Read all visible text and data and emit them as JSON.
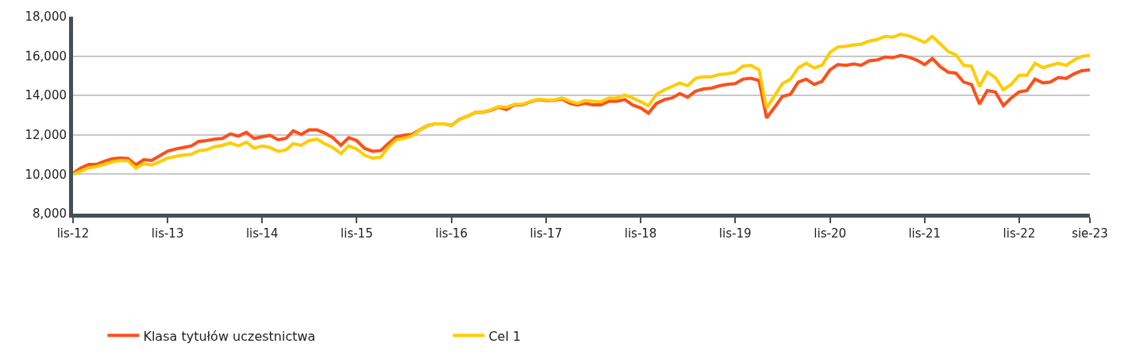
{
  "chart_data": {
    "type": "line",
    "x": [
      "2012-11",
      "2012-12",
      "2013-01",
      "2013-02",
      "2013-03",
      "2013-04",
      "2013-05",
      "2013-06",
      "2013-07",
      "2013-08",
      "2013-09",
      "2013-10",
      "2013-11",
      "2013-12",
      "2014-01",
      "2014-02",
      "2014-03",
      "2014-04",
      "2014-05",
      "2014-06",
      "2014-07",
      "2014-08",
      "2014-09",
      "2014-10",
      "2014-11",
      "2014-12",
      "2015-01",
      "2015-02",
      "2015-03",
      "2015-04",
      "2015-05",
      "2015-06",
      "2015-07",
      "2015-08",
      "2015-09",
      "2015-10",
      "2015-11",
      "2015-12",
      "2016-01",
      "2016-02",
      "2016-03",
      "2016-04",
      "2016-05",
      "2016-06",
      "2016-07",
      "2016-08",
      "2016-09",
      "2016-10",
      "2016-11",
      "2016-12",
      "2017-01",
      "2017-02",
      "2017-03",
      "2017-04",
      "2017-05",
      "2017-06",
      "2017-07",
      "2017-08",
      "2017-09",
      "2017-10",
      "2017-11",
      "2017-12",
      "2018-01",
      "2018-02",
      "2018-03",
      "2018-04",
      "2018-05",
      "2018-06",
      "2018-07",
      "2018-08",
      "2018-09",
      "2018-10",
      "2018-11",
      "2018-12",
      "2019-01",
      "2019-02",
      "2019-03",
      "2019-04",
      "2019-05",
      "2019-06",
      "2019-07",
      "2019-08",
      "2019-09",
      "2019-10",
      "2019-11",
      "2019-12",
      "2020-01",
      "2020-02",
      "2020-03",
      "2020-04",
      "2020-05",
      "2020-06",
      "2020-07",
      "2020-08",
      "2020-09",
      "2020-10",
      "2020-11",
      "2020-12",
      "2021-01",
      "2021-02",
      "2021-03",
      "2021-04",
      "2021-05",
      "2021-06",
      "2021-07",
      "2021-08",
      "2021-09",
      "2021-10",
      "2021-11",
      "2021-12",
      "2022-01",
      "2022-02",
      "2022-03",
      "2022-04",
      "2022-05",
      "2022-06",
      "2022-07",
      "2022-08",
      "2022-09",
      "2022-10",
      "2022-11",
      "2022-12",
      "2023-01",
      "2023-02",
      "2023-03",
      "2023-04",
      "2023-05",
      "2023-06",
      "2023-07",
      "2023-08"
    ],
    "series": [
      {
        "name": "Klasa tytułów uczestnictwa",
        "color": "#ff4e1a",
        "values": [
          10050,
          10320,
          10500,
          10510,
          10660,
          10780,
          10820,
          10800,
          10470,
          10740,
          10700,
          10930,
          11170,
          11280,
          11360,
          11440,
          11670,
          11710,
          11780,
          11820,
          12050,
          11940,
          12130,
          11820,
          11900,
          11980,
          11750,
          11820,
          12210,
          12020,
          12250,
          12250,
          12090,
          11860,
          11470,
          11860,
          11710,
          11320,
          11170,
          11200,
          11550,
          11900,
          11980,
          12020,
          12250,
          12480,
          12560,
          12560,
          12480,
          12790,
          12940,
          13140,
          13140,
          13250,
          13400,
          13290,
          13520,
          13520,
          13680,
          13790,
          13750,
          13750,
          13830,
          13600,
          13520,
          13600,
          13520,
          13520,
          13710,
          13710,
          13790,
          13520,
          13370,
          13100,
          13600,
          13790,
          13870,
          14100,
          13910,
          14220,
          14330,
          14370,
          14490,
          14560,
          14600,
          14830,
          14870,
          14760,
          12860,
          13400,
          13950,
          14060,
          14680,
          14830,
          14560,
          14720,
          15300,
          15570,
          15530,
          15600,
          15530,
          15760,
          15800,
          15950,
          15920,
          16030,
          15950,
          15800,
          15570,
          15880,
          15450,
          15180,
          15140,
          14680,
          14560,
          13560,
          14250,
          14180,
          13480,
          13870,
          14180,
          14250,
          14830,
          14640,
          14680,
          14910,
          14870,
          15100,
          15260,
          15300
        ]
      },
      {
        "name": "Cel 1",
        "color": "#ffcc00",
        "values": [
          10000,
          10160,
          10320,
          10400,
          10500,
          10630,
          10700,
          10680,
          10320,
          10540,
          10470,
          10630,
          10820,
          10900,
          10970,
          11010,
          11200,
          11240,
          11400,
          11470,
          11590,
          11440,
          11630,
          11320,
          11440,
          11360,
          11170,
          11240,
          11550,
          11470,
          11710,
          11780,
          11550,
          11360,
          11050,
          11440,
          11280,
          10970,
          10820,
          10860,
          11360,
          11750,
          11820,
          11940,
          12250,
          12480,
          12560,
          12560,
          12480,
          12790,
          12940,
          13140,
          13140,
          13280,
          13430,
          13400,
          13550,
          13550,
          13700,
          13810,
          13780,
          13770,
          13870,
          13710,
          13600,
          13740,
          13710,
          13680,
          13870,
          13870,
          14020,
          13870,
          13680,
          13480,
          14060,
          14290,
          14450,
          14640,
          14490,
          14870,
          14950,
          14950,
          15070,
          15100,
          15180,
          15490,
          15530,
          15300,
          13370,
          13990,
          14600,
          14830,
          15400,
          15640,
          15400,
          15530,
          16190,
          16460,
          16500,
          16570,
          16600,
          16760,
          16840,
          17000,
          16960,
          17110,
          17030,
          16880,
          16690,
          17000,
          16610,
          16220,
          16070,
          15530,
          15490,
          14450,
          15180,
          14910,
          14290,
          14560,
          15030,
          15030,
          15640,
          15410,
          15530,
          15640,
          15530,
          15800,
          15990,
          16030
        ]
      }
    ],
    "xlim": [
      "2012-11",
      "2023-08"
    ],
    "xticks": [
      {
        "value": "2012-11",
        "label": "lis-12"
      },
      {
        "value": "2013-11",
        "label": "lis-13"
      },
      {
        "value": "2014-11",
        "label": "lis-14"
      },
      {
        "value": "2015-11",
        "label": "lis-15"
      },
      {
        "value": "2016-11",
        "label": "lis-16"
      },
      {
        "value": "2017-11",
        "label": "lis-17"
      },
      {
        "value": "2018-11",
        "label": "lis-18"
      },
      {
        "value": "2019-11",
        "label": "lis-19"
      },
      {
        "value": "2020-11",
        "label": "lis-20"
      },
      {
        "value": "2021-11",
        "label": "lis-21"
      },
      {
        "value": "2022-11",
        "label": "lis-22"
      },
      {
        "value": "2023-08",
        "label": "sie-23"
      }
    ],
    "ylim": [
      8000,
      18000
    ],
    "yticks": [
      {
        "value": 8000,
        "label": "8,000"
      },
      {
        "value": 10000,
        "label": "10,000"
      },
      {
        "value": 12000,
        "label": "12,000"
      },
      {
        "value": 14000,
        "label": "14,000"
      },
      {
        "value": 16000,
        "label": "16,000"
      },
      {
        "value": 18000,
        "label": "18,000"
      }
    ],
    "grid": "y",
    "legend": "bottom",
    "marker": "none",
    "line_style": "solid"
  }
}
